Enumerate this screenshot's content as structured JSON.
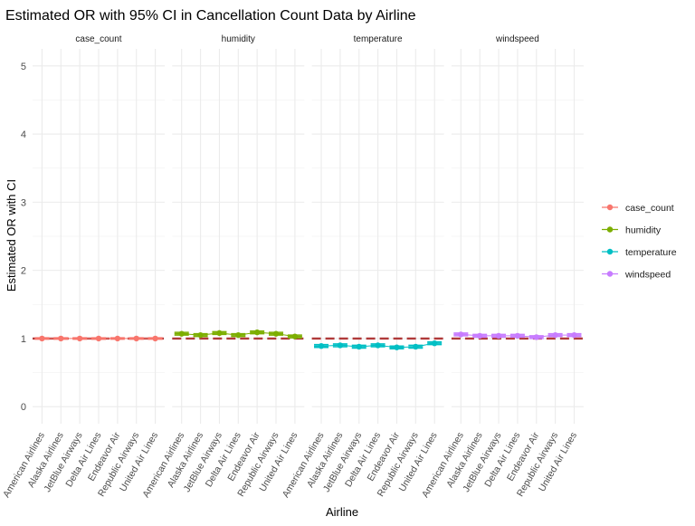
{
  "chart_data": {
    "type": "scatter",
    "title": "Estimated OR with 95% CI in Cancellation Count Data by Airline",
    "xlabel": "Airline",
    "ylabel": "Estimated OR with CI",
    "ylim": [
      -0.25,
      5.25
    ],
    "yticks": [
      0,
      1,
      2,
      3,
      4,
      5
    ],
    "reference_line": 1,
    "categories": [
      "American Airlines",
      "Alaska Airlines",
      "JetBlue Airways",
      "Delta Air Lines",
      "Endeavor Air",
      "Republic Airways",
      "United Air Lines"
    ],
    "legend_position": "right",
    "grid": true,
    "series": [
      {
        "name": "case_count",
        "color": "#F8766D",
        "values": [
          1.0,
          1.0,
          1.0,
          1.0,
          1.0,
          1.0,
          1.0
        ],
        "ci_low": [
          0.99,
          0.99,
          0.99,
          0.99,
          0.99,
          0.99,
          0.99
        ],
        "ci_high": [
          1.01,
          1.01,
          1.01,
          1.01,
          1.01,
          1.01,
          1.01
        ]
      },
      {
        "name": "humidity",
        "color": "#7CAE00",
        "values": [
          1.07,
          1.05,
          1.08,
          1.05,
          1.09,
          1.07,
          1.03
        ],
        "ci_low": [
          1.05,
          1.03,
          1.06,
          1.03,
          1.07,
          1.05,
          1.01
        ],
        "ci_high": [
          1.09,
          1.07,
          1.1,
          1.07,
          1.11,
          1.09,
          1.05
        ]
      },
      {
        "name": "temperature",
        "color": "#00BFC4",
        "values": [
          0.89,
          0.9,
          0.88,
          0.9,
          0.87,
          0.88,
          0.93
        ],
        "ci_low": [
          0.87,
          0.88,
          0.86,
          0.88,
          0.85,
          0.86,
          0.91
        ],
        "ci_high": [
          0.91,
          0.92,
          0.9,
          0.92,
          0.89,
          0.9,
          0.95
        ]
      },
      {
        "name": "windspeed",
        "color": "#C77CFF",
        "values": [
          1.06,
          1.04,
          1.04,
          1.04,
          1.02,
          1.05,
          1.05
        ],
        "ci_low": [
          1.04,
          1.02,
          1.02,
          1.02,
          1.0,
          1.03,
          1.03
        ],
        "ci_high": [
          1.08,
          1.06,
          1.06,
          1.06,
          1.04,
          1.07,
          1.07
        ]
      }
    ]
  }
}
